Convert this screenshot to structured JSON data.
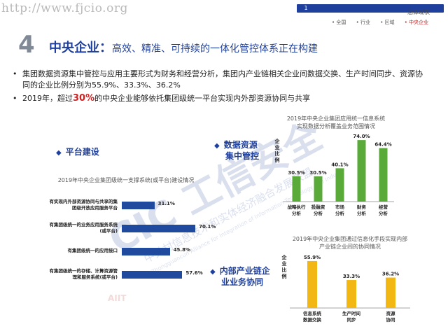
{
  "watermark_url": "http://www.fjcio.org",
  "nav": {
    "number": "1",
    "title": "总体现状",
    "tabs": [
      "• 全国",
      "• 行业",
      "• 区域",
      "• 中央企业"
    ],
    "active_index": 3
  },
  "heading": {
    "number": "4",
    "main": "中央企业：",
    "sub": "高效、精准、可持续的一体化管控体系正在构建"
  },
  "bullets": {
    "b1": "集团数据资源集中管控与应用主要形式为财务和经营分析，集团内产业链相关企业间数据交换、生产时间同步、资源协同的企业比例分别为55.9%、33.3%、36.2%",
    "b2_pre": "2019年，超过",
    "b2_hl": "30%",
    "b2_post": "的中央企业能够依托集团级统一平台实现内外部资源协同与共享"
  },
  "sections": {
    "platform": "平台建设",
    "data_l1": "数据资源",
    "data_l2": "集中管控",
    "chain_l1": "内部产业链企",
    "chain_l2": "业业务协同"
  },
  "charts": {
    "platform": {
      "title": "2019年中央企业集团级统一支撑系统(或平台)建设情况",
      "rows": [
        {
          "l1": "有实现内外部资源协同与共享的集",
          "l2": "团级开放应用服务平台",
          "value": 31.1,
          "label": "31.1%"
        },
        {
          "l1": "有集团级统一的业务应用服务系统",
          "l2": "(或平台)",
          "value": 70.1,
          "label": "70.1%"
        },
        {
          "l1": "有集团级统一的应用接口",
          "l2": "",
          "value": 45.8,
          "label": "45.8%"
        },
        {
          "l1": "有集团级统一的存储、计算资源管",
          "l2": "理和服务系统(或平台)",
          "value": 57.6,
          "label": "57.6%"
        }
      ]
    },
    "data": {
      "title_l1": "2019年中央企业集团应用统一信息系统",
      "title_l2": "实现数据分析覆盖业务范围情况",
      "ylabel": "企业比例",
      "bars": [
        {
          "c1": "战略执行",
          "c2": "分析",
          "value": 30.5,
          "label": "30.5%"
        },
        {
          "c1": "投融资",
          "c2": "分析",
          "value": 30.5,
          "label": "30.5%"
        },
        {
          "c1": "市场",
          "c2": "分析",
          "value": 40.1,
          "label": "40.1%"
        },
        {
          "c1": "财务",
          "c2": "分析",
          "value": 74.0,
          "label": "74.0%"
        },
        {
          "c1": "经营",
          "c2": "分析",
          "value": 64.4,
          "label": "64.4%"
        }
      ],
      "color": "#5aaa3a"
    },
    "chain": {
      "title_l1": "2019年中央企业集团通过信息化手段实现内部",
      "title_l2": "产业链企业间的协同情况",
      "ylabel": "企业比例",
      "bars": [
        {
          "c1": "信息系统",
          "c2": "数据交换",
          "value": 55.9,
          "label": "55.9%"
        },
        {
          "c1": "生产时间",
          "c2": "同步",
          "value": 33.3,
          "label": "33.3%"
        },
        {
          "c1": "资源",
          "c2": "协同",
          "value": 36.2,
          "label": "36.2%"
        }
      ],
      "color": "#f2b712"
    }
  },
  "chart_data": [
    {
      "type": "bar",
      "orientation": "horizontal",
      "title": "2019年中央企业集团级统一支撑系统(或平台)建设情况",
      "categories": [
        "有实现内外部资源协同与共享的集团级开放应用服务平台",
        "有集团级统一的业务应用服务系统(或平台)",
        "有集团级统一的应用接口",
        "有集团级统一的存储、计算资源管理和服务系统(或平台)"
      ],
      "values": [
        31.1,
        70.1,
        45.8,
        57.6
      ],
      "xlim": [
        0,
        100
      ]
    },
    {
      "type": "bar",
      "title": "2019年中央企业集团应用统一信息系统实现数据分析覆盖业务范围情况",
      "ylabel": "企业比例",
      "categories": [
        "战略执行分析",
        "投融资分析",
        "市场分析",
        "财务分析",
        "经营分析"
      ],
      "values": [
        30.5,
        30.5,
        40.1,
        74.0,
        64.4
      ],
      "ylim": [
        0,
        80
      ]
    },
    {
      "type": "bar",
      "title": "2019年中央企业集团通过信息化手段实现内部产业链企业间的协同情况",
      "ylabel": "企业比例",
      "categories": [
        "信息系统数据交换",
        "生产时间同步",
        "资源协同"
      ],
      "values": [
        55.9,
        33.3,
        36.2
      ],
      "ylim": [
        0,
        60
      ]
    }
  ],
  "logo": {
    "big_text": "CIC 工信安全",
    "cn_line": "中关村信息技术和实体经济融合发展联盟",
    "en_line": "Zhongguancun Alliance for Integration of Information Technology and Industry",
    "short": "AIIT"
  }
}
